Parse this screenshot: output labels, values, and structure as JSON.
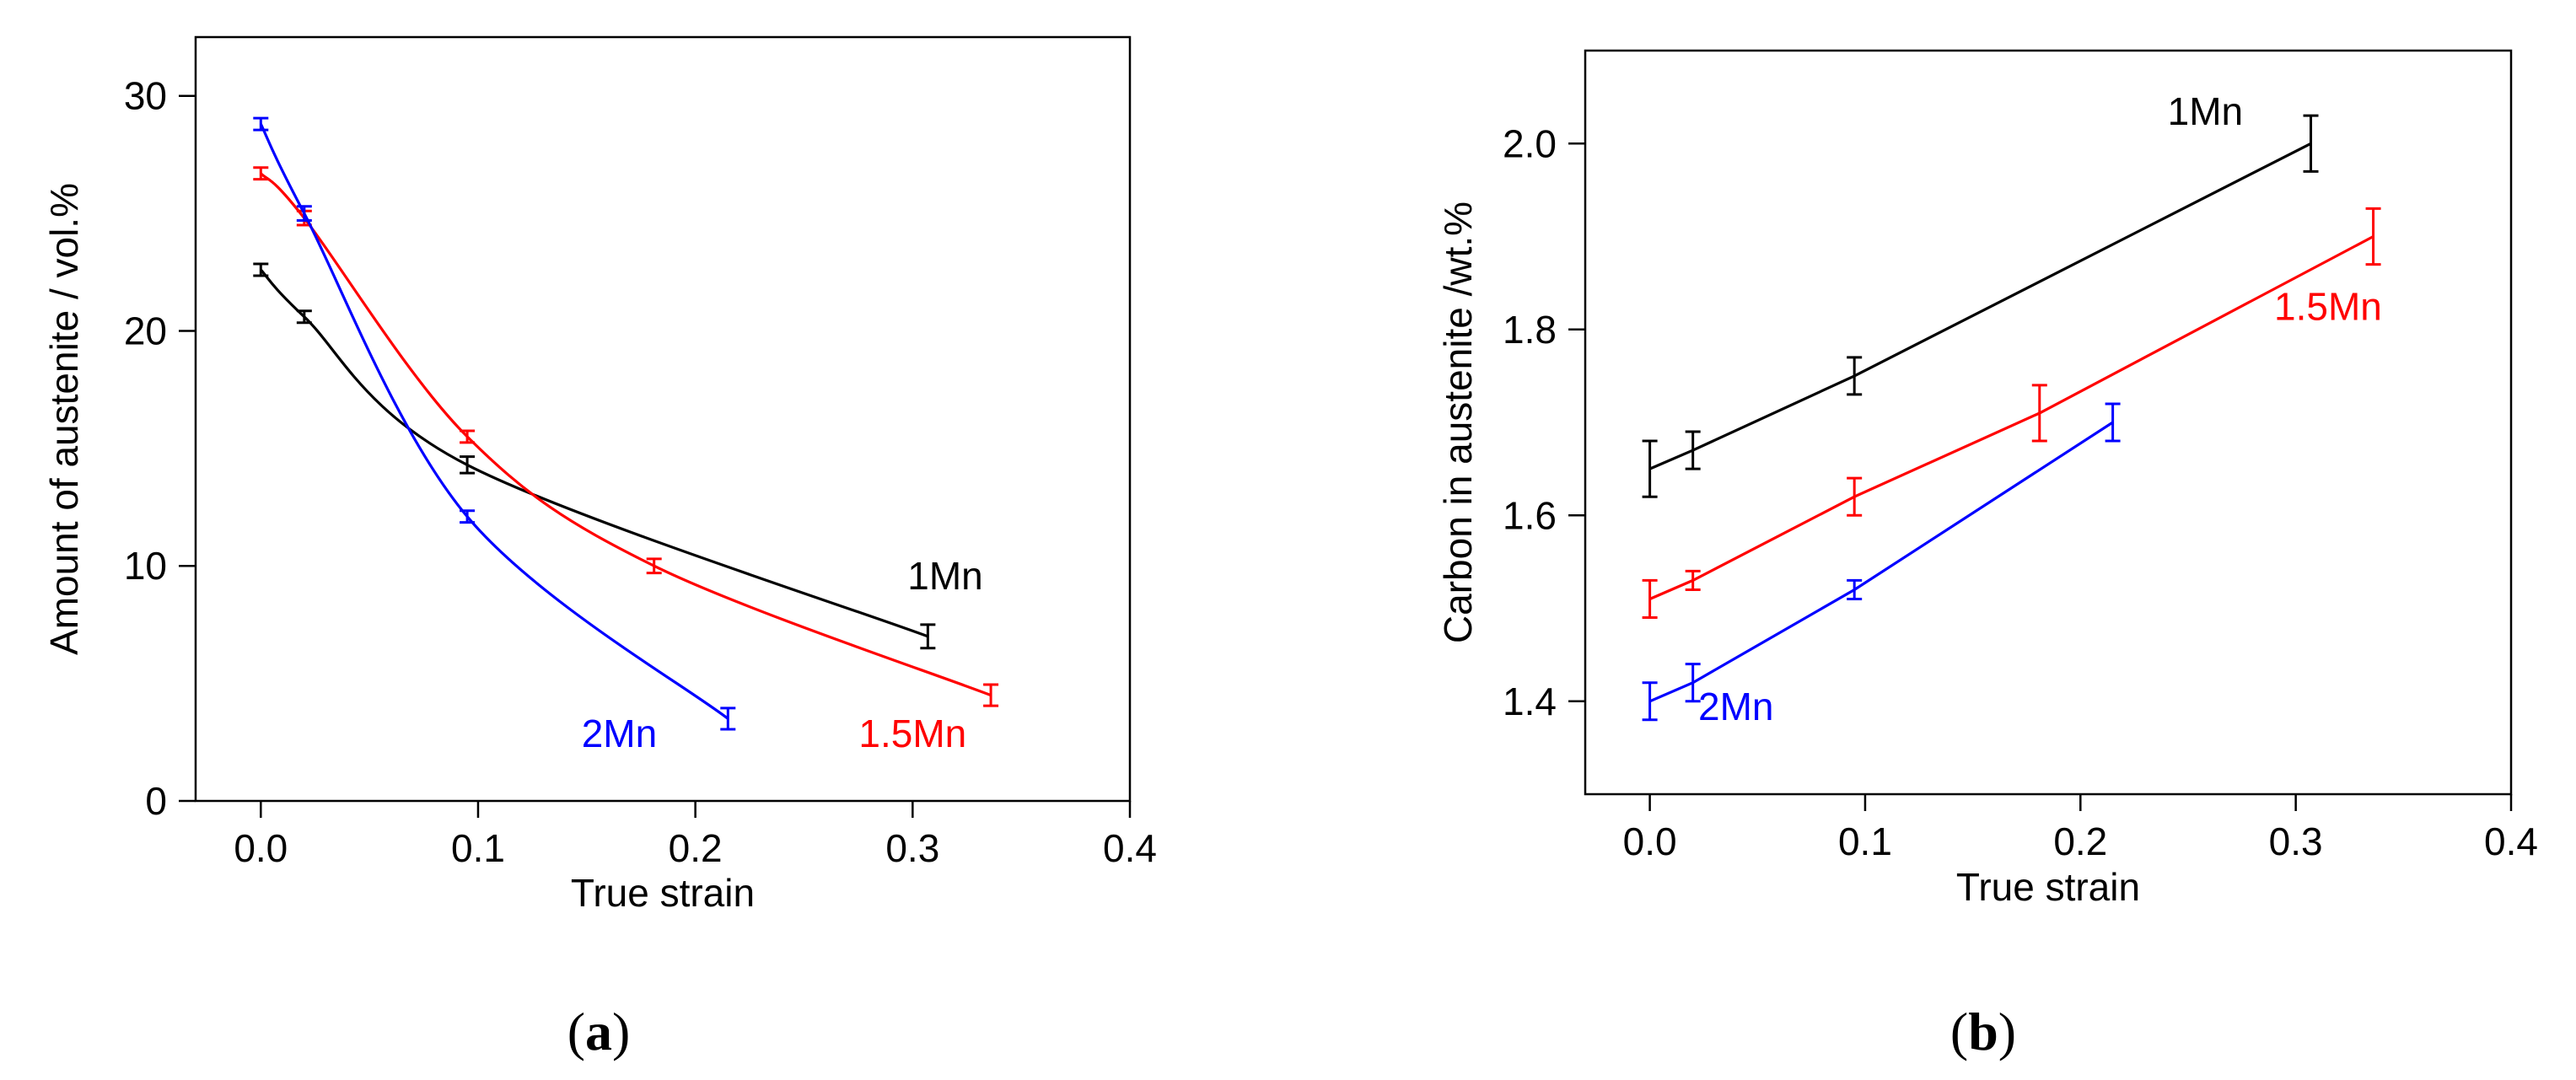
{
  "chart_data": [
    {
      "type": "line",
      "panel_label": "(a)",
      "title": "",
      "xlabel": "True strain",
      "ylabel": "Amount of austenite / vol.%",
      "xlim": [
        -0.03,
        0.4
      ],
      "ylim": [
        0,
        32.5
      ],
      "xticks": [
        0.0,
        0.1,
        0.2,
        0.3,
        0.4
      ],
      "xtick_labels": [
        "0.0",
        "0.1",
        "0.2",
        "0.3",
        "0.4"
      ],
      "yticks": [
        0,
        10,
        20,
        30
      ],
      "ytick_labels": [
        "0",
        "10",
        "20",
        "30"
      ],
      "grid": false,
      "series": [
        {
          "name": "1Mn",
          "color": "#000000",
          "x": [
            0.0,
            0.02,
            0.095,
            0.307
          ],
          "y": [
            22.6,
            20.6,
            14.3,
            7.0
          ],
          "err": [
            0.25,
            0.25,
            0.35,
            0.5
          ],
          "label_anchor": [
            0.315,
            9.0
          ]
        },
        {
          "name": "1.5Mn",
          "color": "#ff0000",
          "x": [
            0.0,
            0.02,
            0.095,
            0.181,
            0.336
          ],
          "y": [
            26.7,
            24.8,
            15.5,
            10.0,
            4.5
          ],
          "err": [
            0.25,
            0.3,
            0.25,
            0.3,
            0.45
          ],
          "label_anchor": [
            0.3,
            2.3
          ]
        },
        {
          "name": "2Mn",
          "color": "#0000ff",
          "x": [
            0.0,
            0.02,
            0.095,
            0.215
          ],
          "y": [
            28.8,
            25.0,
            12.1,
            3.5
          ],
          "err": [
            0.25,
            0.3,
            0.25,
            0.45
          ],
          "label_anchor": [
            0.165,
            2.3
          ]
        }
      ]
    },
    {
      "type": "line",
      "panel_label": "(b)",
      "title": "",
      "xlabel": "True strain",
      "ylabel": "Carbon in austenite /wt.%",
      "xlim": [
        -0.03,
        0.4
      ],
      "ylim": [
        1.3,
        2.1
      ],
      "xticks": [
        0.0,
        0.1,
        0.2,
        0.3,
        0.4
      ],
      "xtick_labels": [
        "0.0",
        "0.1",
        "0.2",
        "0.3",
        "0.4"
      ],
      "yticks": [
        1.4,
        1.6,
        1.8,
        2.0
      ],
      "ytick_labels": [
        "1.4",
        "1.6",
        "1.8",
        "2.0"
      ],
      "grid": false,
      "series": [
        {
          "name": "1Mn",
          "color": "#000000",
          "x": [
            0.0,
            0.02,
            0.095,
            0.307
          ],
          "y": [
            1.65,
            1.67,
            1.75,
            2.0
          ],
          "err": [
            0.03,
            0.02,
            0.02,
            0.03
          ],
          "label_anchor": [
            0.258,
            2.02
          ]
        },
        {
          "name": "1.5Mn",
          "color": "#ff0000",
          "x": [
            0.0,
            0.02,
            0.095,
            0.181,
            0.336
          ],
          "y": [
            1.51,
            1.53,
            1.62,
            1.71,
            1.9
          ],
          "err": [
            0.02,
            0.01,
            0.02,
            0.03,
            0.03
          ],
          "label_anchor": [
            0.315,
            1.81
          ]
        },
        {
          "name": "2Mn",
          "color": "#0000ff",
          "x": [
            0.0,
            0.02,
            0.095,
            0.215
          ],
          "y": [
            1.4,
            1.42,
            1.52,
            1.7
          ],
          "err": [
            0.02,
            0.02,
            0.01,
            0.02
          ],
          "label_anchor": [
            0.04,
            1.38
          ]
        }
      ]
    }
  ]
}
